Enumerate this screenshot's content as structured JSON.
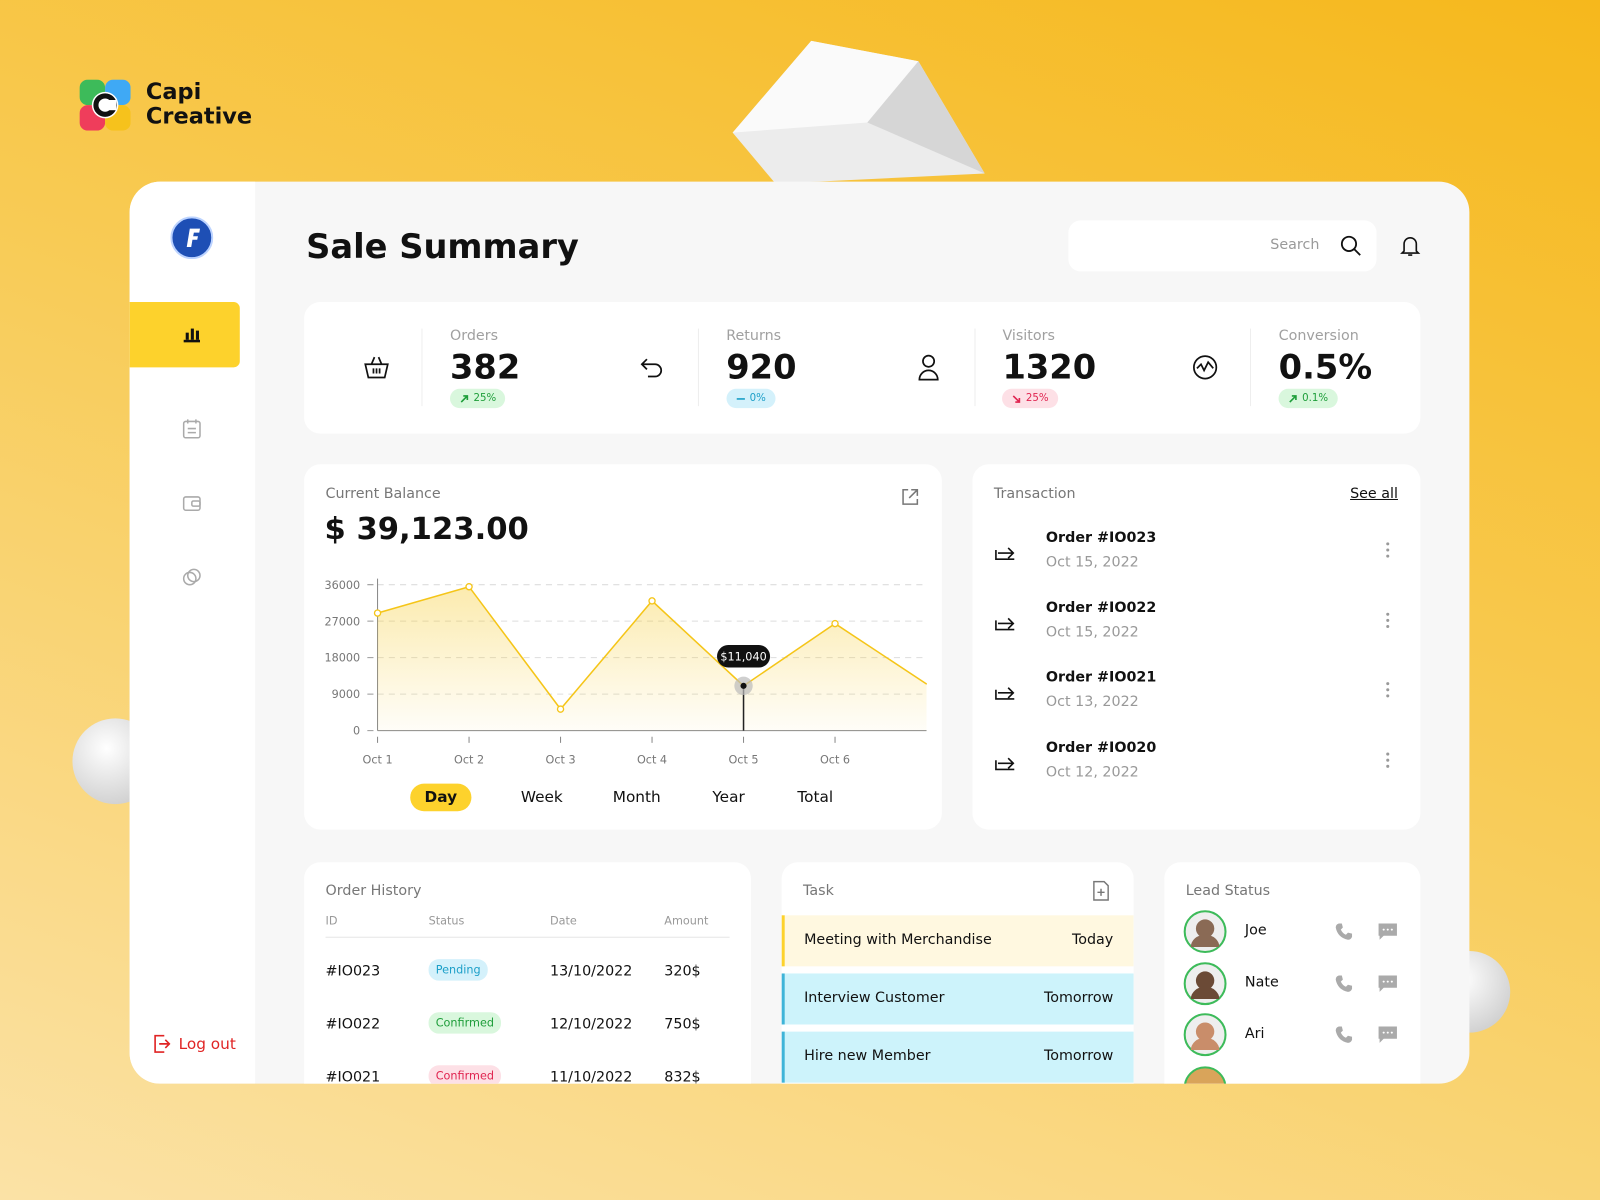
{
  "brand": {
    "line1": "Capi",
    "line2": "Creative"
  },
  "header": {
    "title": "Sale Summary",
    "search": "Search"
  },
  "stats": [
    {
      "label": "Orders",
      "value": "382",
      "change": "25%"
    },
    {
      "label": "Returns",
      "value": "920",
      "change": "0%"
    },
    {
      "label": "Visitors",
      "value": "1320",
      "change": "25%"
    },
    {
      "label": "Conversion",
      "value": "0.5%",
      "change": "0.1%"
    }
  ],
  "balance": {
    "label": "Current Balance",
    "amount": "$ 39,123.00",
    "tabs": [
      "Day",
      "Week",
      "Month",
      "Year",
      "Total"
    ]
  },
  "chart_data": {
    "type": "line",
    "categories": [
      "Oct 1",
      "Oct 2",
      "Oct 3",
      "Oct 4",
      "Oct 5",
      "Oct 6",
      null
    ],
    "values": [
      29000,
      35500,
      5300,
      32000,
      11040,
      26400,
      11500
    ],
    "value_labels": [
      null,
      null,
      null,
      null,
      "$11,040",
      null,
      null
    ],
    "color": "#f5c518",
    "ylim": [
      0,
      36000
    ],
    "yticks": [
      0,
      9000,
      18000,
      27000,
      36000
    ],
    "grid": true
  },
  "transactions": {
    "title": "Transaction",
    "link": "See all",
    "items": [
      {
        "order": "Order #IO023",
        "date": "Oct 15, 2022"
      },
      {
        "order": "Order #IO022",
        "date": "Oct 15, 2022"
      },
      {
        "order": "Order #IO021",
        "date": "Oct 13, 2022"
      },
      {
        "order": "Order #IO020",
        "date": "Oct 12, 2022"
      }
    ]
  },
  "order_history": {
    "title": "Order History",
    "columns": [
      "ID",
      "Status",
      "Date",
      "Amount"
    ],
    "rows": [
      [
        "#IO023",
        "Pending",
        "13/10/2022",
        "320$"
      ],
      [
        "#IO022",
        "Confirmed",
        "12/10/2022",
        "750$"
      ],
      [
        "#IO021",
        "Confirmed",
        "11/10/2022",
        "832$"
      ]
    ]
  },
  "tasks": {
    "title": "Task",
    "items": [
      {
        "name": "Meeting with Merchandise",
        "due": "Today"
      },
      {
        "name": "Interview Customer",
        "due": "Tomorrow"
      },
      {
        "name": "Hire new Member",
        "due": "Tomorrow"
      }
    ]
  },
  "leads": {
    "title": "Lead Status",
    "names": [
      "Joe",
      "Nate",
      "Ari"
    ]
  },
  "sidebar": {
    "logout": "Log out"
  }
}
